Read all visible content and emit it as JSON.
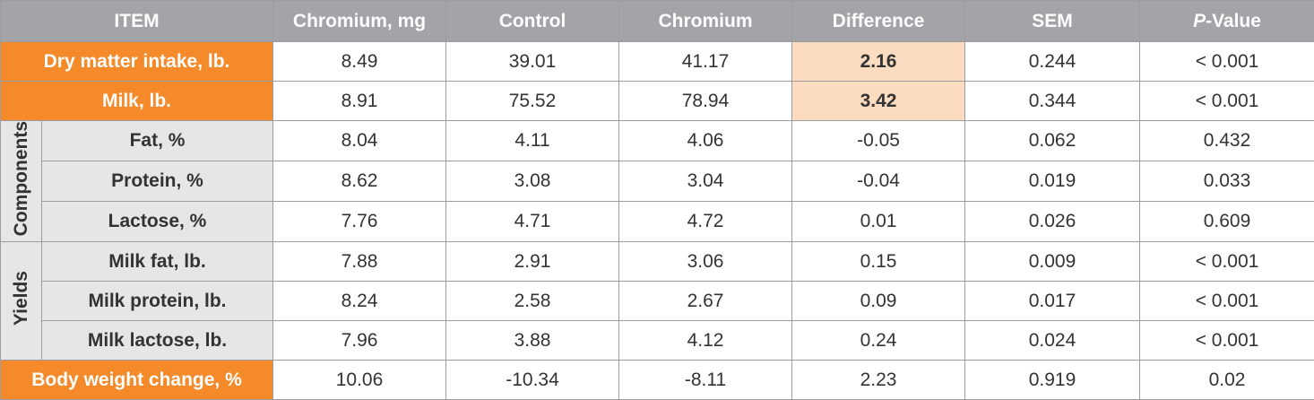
{
  "table": {
    "headers": {
      "item": "ITEM",
      "chromium_mg": "Chromium, mg",
      "control": "Control",
      "chromium": "Chromium",
      "difference": "Difference",
      "sem": "SEM",
      "p_italic": "P",
      "p_rest": "-Value"
    },
    "groups": {
      "components": "Components",
      "yields": "Yields"
    },
    "rows": [
      {
        "label": "Dry matter intake, lb.",
        "chromium_mg": "8.49",
        "control": "39.01",
        "chromium": "41.17",
        "difference": "2.16",
        "sem": "0.244",
        "p": "< 0.001"
      },
      {
        "label": "Milk, lb.",
        "chromium_mg": "8.91",
        "control": "75.52",
        "chromium": "78.94",
        "difference": "3.42",
        "sem": "0.344",
        "p": "< 0.001"
      },
      {
        "label": "Fat, %",
        "chromium_mg": "8.04",
        "control": "4.11",
        "chromium": "4.06",
        "difference": "-0.05",
        "sem": "0.062",
        "p": "0.432"
      },
      {
        "label": "Protein, %",
        "chromium_mg": "8.62",
        "control": "3.08",
        "chromium": "3.04",
        "difference": "-0.04",
        "sem": "0.019",
        "p": "0.033"
      },
      {
        "label": "Lactose, %",
        "chromium_mg": "7.76",
        "control": "4.71",
        "chromium": "4.72",
        "difference": "0.01",
        "sem": "0.026",
        "p": "0.609"
      },
      {
        "label": "Milk fat, lb.",
        "chromium_mg": "7.88",
        "control": "2.91",
        "chromium": "3.06",
        "difference": "0.15",
        "sem": "0.009",
        "p": "< 0.001"
      },
      {
        "label": "Milk protein, lb.",
        "chromium_mg": "8.24",
        "control": "2.58",
        "chromium": "2.67",
        "difference": "0.09",
        "sem": "0.017",
        "p": "< 0.001"
      },
      {
        "label": "Milk lactose, lb.",
        "chromium_mg": "7.96",
        "control": "3.88",
        "chromium": "4.12",
        "difference": "0.24",
        "sem": "0.024",
        "p": "< 0.001"
      },
      {
        "label": "Body weight change, %",
        "chromium_mg": "10.06",
        "control": "-10.34",
        "chromium": "-8.11",
        "difference": "2.23",
        "sem": "0.919",
        "p": "0.02"
      }
    ],
    "colors": {
      "header_bg": "#a3a3a8",
      "accent_orange": "#f58a2a",
      "highlight_peach": "#fcdcc0",
      "row_label_gray": "#e6e6e6"
    }
  }
}
